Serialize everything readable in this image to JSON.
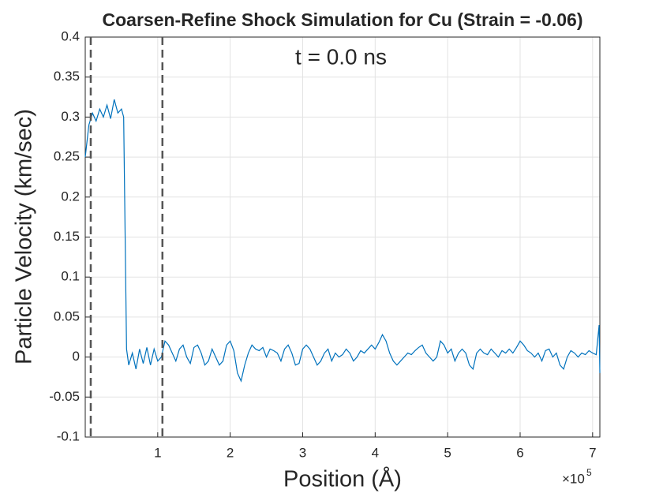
{
  "chart_data": {
    "type": "line",
    "title": "Coarsen-Refine Shock Simulation for Cu (Strain = -0.06)",
    "xlabel": "Position (Å)",
    "ylabel": "Particle Velocity (km/sec)",
    "annotation": "t = 0.0 ns",
    "x_exponent_base": "×10",
    "x_exponent_power": "5",
    "color": "#0072bd",
    "grid": true,
    "xlim": [
      0,
      710000
    ],
    "ylim": [
      -0.1,
      0.4
    ],
    "xticks": [
      {
        "value": 100000,
        "label": "1"
      },
      {
        "value": 200000,
        "label": "2"
      },
      {
        "value": 300000,
        "label": "3"
      },
      {
        "value": 400000,
        "label": "4"
      },
      {
        "value": 500000,
        "label": "5"
      },
      {
        "value": 600000,
        "label": "6"
      },
      {
        "value": 700000,
        "label": "7"
      }
    ],
    "yticks": [
      -0.1,
      -0.05,
      0,
      0.05,
      0.1,
      0.15,
      0.2,
      0.25,
      0.3,
      0.35,
      0.4
    ],
    "vlines": [
      7600,
      106500
    ],
    "x": [
      0,
      5000,
      10000,
      15000,
      20000,
      25000,
      30000,
      35000,
      40000,
      45000,
      50000,
      53000,
      57000,
      60000,
      65000,
      70000,
      75000,
      80000,
      85000,
      90000,
      95000,
      100000,
      105000,
      110000,
      115000,
      120000,
      125000,
      130000,
      135000,
      140000,
      145000,
      150000,
      155000,
      160000,
      165000,
      170000,
      175000,
      180000,
      185000,
      190000,
      195000,
      200000,
      205000,
      210000,
      215000,
      220000,
      225000,
      230000,
      235000,
      240000,
      245000,
      250000,
      255000,
      260000,
      265000,
      270000,
      275000,
      280000,
      285000,
      290000,
      295000,
      300000,
      305000,
      310000,
      315000,
      320000,
      325000,
      330000,
      335000,
      340000,
      345000,
      350000,
      355000,
      360000,
      365000,
      370000,
      375000,
      380000,
      385000,
      390000,
      395000,
      400000,
      405000,
      410000,
      415000,
      420000,
      425000,
      430000,
      435000,
      440000,
      445000,
      450000,
      455000,
      460000,
      465000,
      470000,
      475000,
      480000,
      485000,
      490000,
      495000,
      500000,
      505000,
      510000,
      515000,
      520000,
      525000,
      530000,
      535000,
      540000,
      545000,
      550000,
      555000,
      560000,
      565000,
      570000,
      575000,
      580000,
      585000,
      590000,
      595000,
      600000,
      605000,
      610000,
      615000,
      620000,
      625000,
      630000,
      635000,
      640000,
      645000,
      650000,
      655000,
      660000,
      665000,
      670000,
      675000,
      680000,
      685000,
      690000,
      695000,
      700000,
      705000,
      709000,
      710000
    ],
    "values": [
      0.25,
      0.29,
      0.305,
      0.295,
      0.31,
      0.3,
      0.315,
      0.298,
      0.322,
      0.305,
      0.31,
      0.3,
      0.01,
      -0.01,
      0.005,
      -0.015,
      0.01,
      -0.008,
      0.012,
      -0.01,
      0.01,
      -0.005,
      0.0,
      0.02,
      0.015,
      0.005,
      -0.005,
      0.01,
      0.015,
      0.0,
      -0.008,
      0.012,
      0.015,
      0.005,
      -0.01,
      -0.005,
      0.01,
      0.0,
      -0.01,
      -0.005,
      0.015,
      0.02,
      0.008,
      -0.02,
      -0.03,
      -0.01,
      0.005,
      0.015,
      0.01,
      0.008,
      0.012,
      0.0,
      0.01,
      0.008,
      0.005,
      -0.005,
      0.01,
      0.015,
      0.005,
      -0.01,
      -0.008,
      0.01,
      0.015,
      0.01,
      0.0,
      -0.01,
      -0.005,
      0.005,
      0.01,
      -0.005,
      0.005,
      0.0,
      0.003,
      0.01,
      0.005,
      -0.005,
      0.0,
      0.008,
      0.005,
      0.01,
      0.015,
      0.01,
      0.018,
      0.028,
      0.02,
      0.005,
      -0.005,
      -0.01,
      -0.005,
      0.0,
      0.005,
      0.003,
      0.008,
      0.012,
      0.015,
      0.005,
      0.0,
      -0.005,
      0.0,
      0.02,
      0.015,
      0.005,
      0.01,
      -0.005,
      0.005,
      0.01,
      0.005,
      -0.01,
      -0.015,
      0.005,
      0.01,
      0.005,
      0.003,
      0.01,
      0.005,
      0.0,
      0.008,
      0.005,
      0.01,
      0.005,
      0.012,
      0.02,
      0.015,
      0.008,
      0.005,
      0.0,
      0.005,
      -0.005,
      0.008,
      0.01,
      0.0,
      0.005,
      -0.01,
      -0.015,
      0.0,
      0.008,
      0.005,
      0.0,
      0.005,
      0.003,
      0.008,
      0.005,
      0.003,
      0.04,
      -0.02
    ]
  }
}
